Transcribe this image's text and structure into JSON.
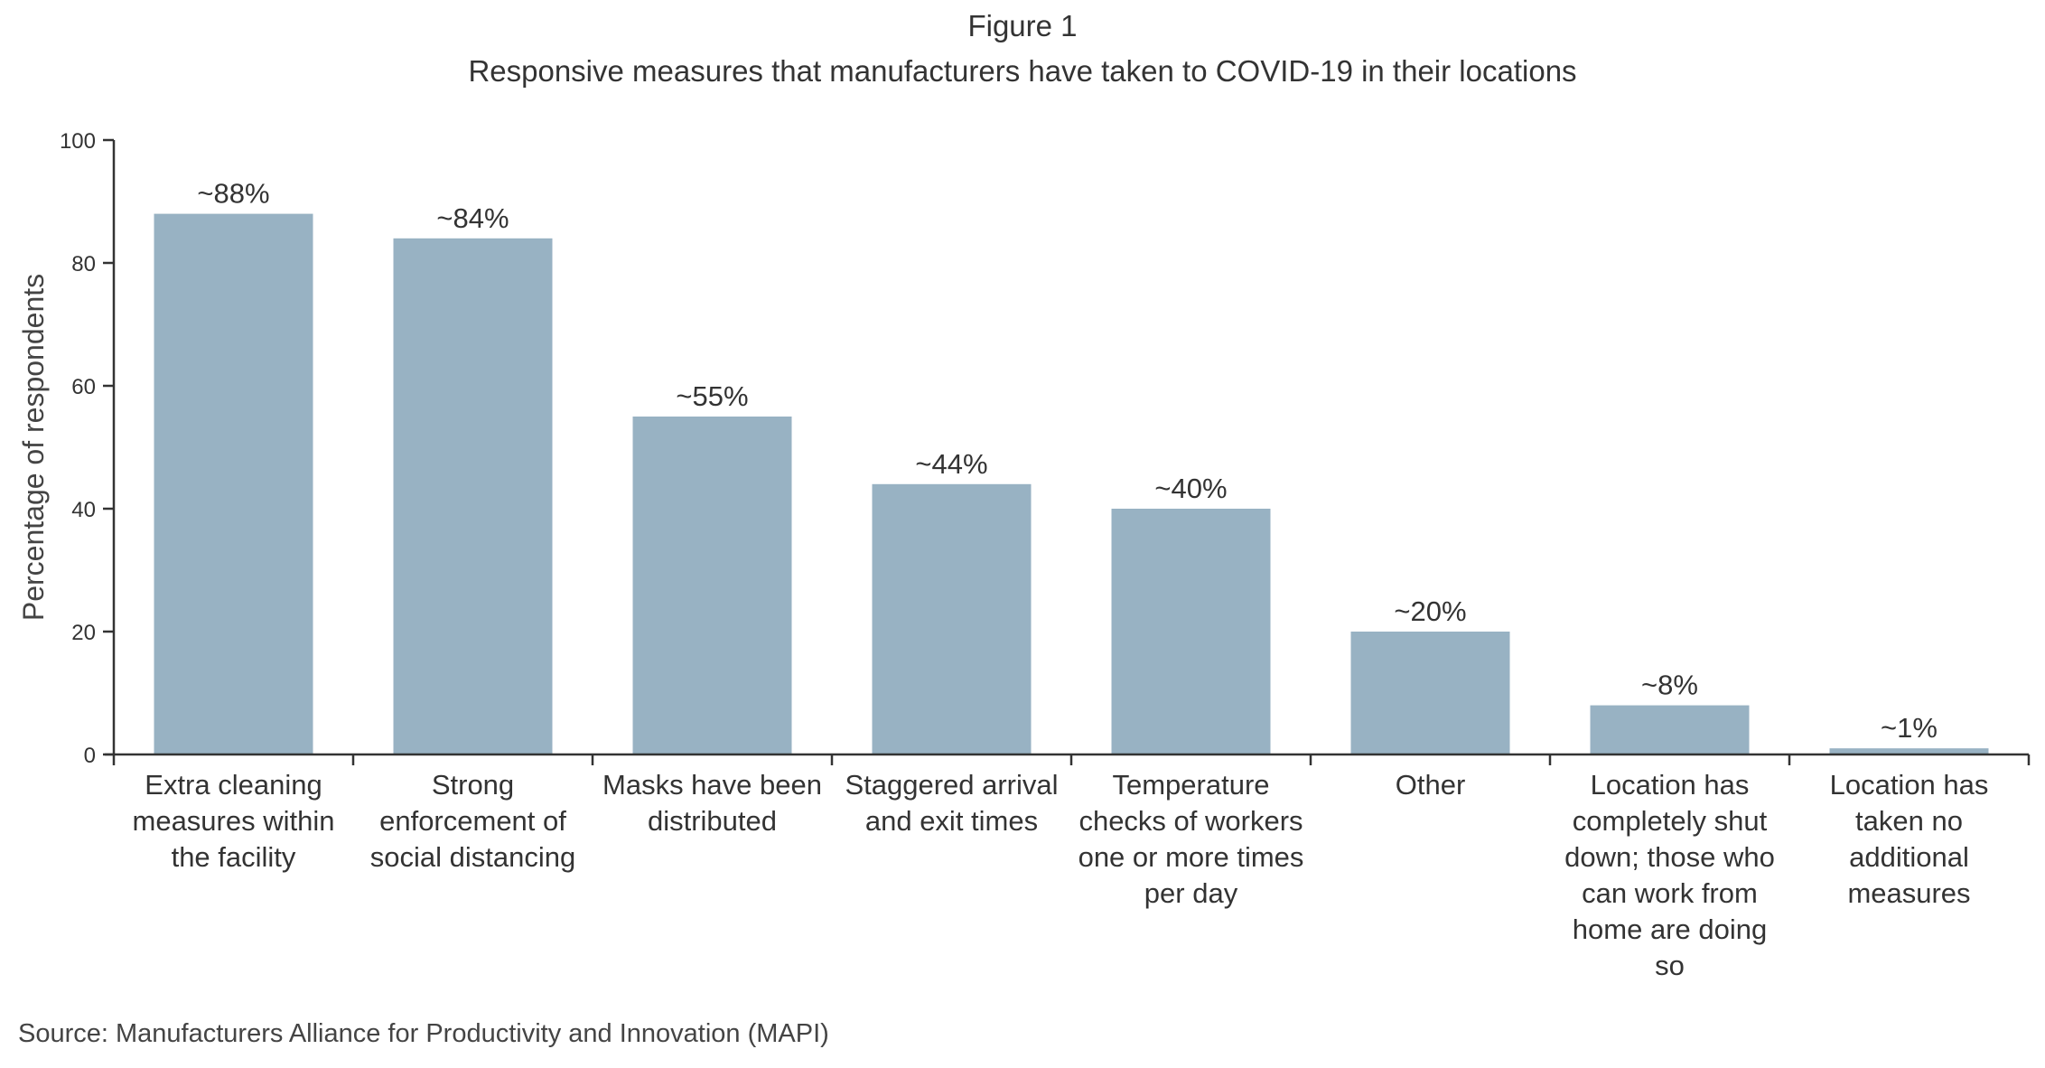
{
  "figure_label": "Figure 1",
  "source": "Source: Manufacturers Alliance for Productivity and Innovation (MAPI)",
  "colors": {
    "bar": "#98b2c3",
    "axis": "#333333"
  },
  "chart_data": {
    "type": "bar",
    "title": "Responsive measures that manufacturers have taken to COVID-19 in their locations",
    "xlabel": "",
    "ylabel": "Percentage of respondents",
    "ylim": [
      0,
      100
    ],
    "yticks": [
      0,
      20,
      40,
      60,
      80,
      100
    ],
    "grid": false,
    "categories": [
      "Extra cleaning measures within the facility",
      "Strong enforcement of social distancing",
      "Masks have been distributed",
      "Staggered arrival and exit times",
      "Temperature checks of workers one or more times per day",
      "Other",
      "Location has completely shut down; those who can work from home are doing so",
      "Location has taken no additional measures"
    ],
    "values": [
      88,
      84,
      55,
      44,
      40,
      20,
      8,
      1
    ],
    "data_labels": [
      "~88%",
      "~84%",
      "~55%",
      "~44%",
      "~40%",
      "~20%",
      "~8%",
      "~1%"
    ]
  }
}
